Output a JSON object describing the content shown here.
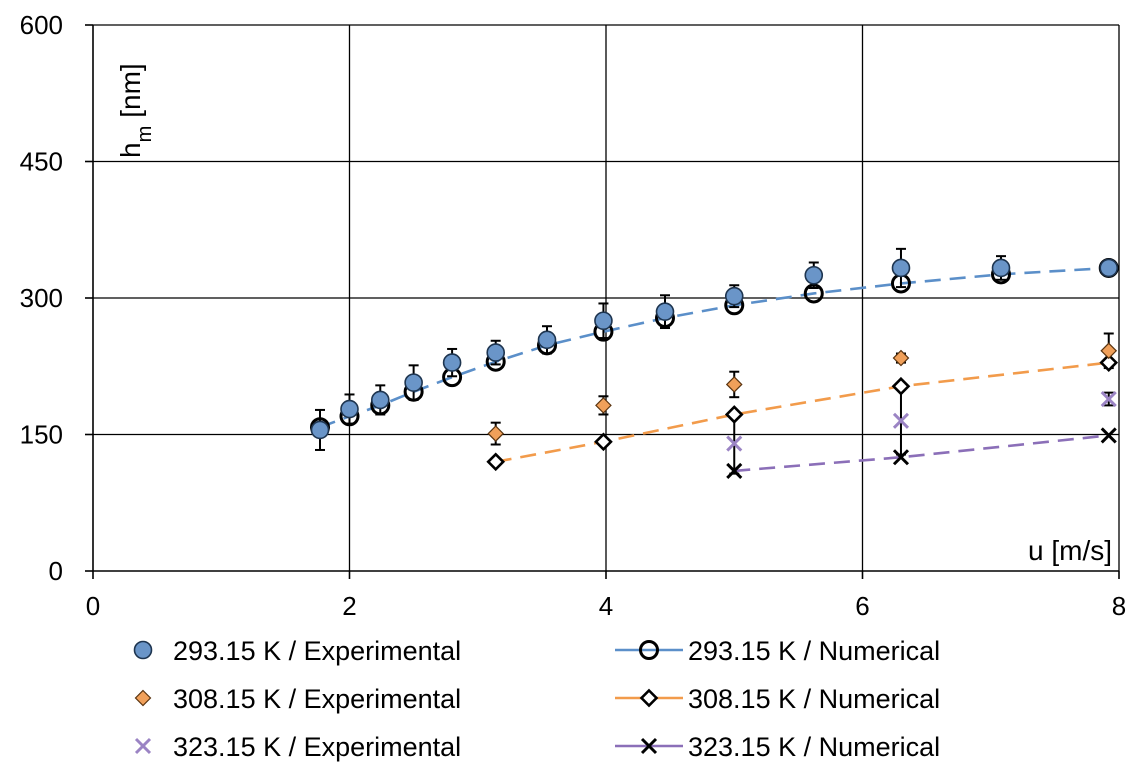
{
  "chart_data": {
    "type": "scatter",
    "xlabel": "u [m/s]",
    "ylabel_main": "h",
    "ylabel_sub": "m",
    "ylabel_unit": "[nm]",
    "xlim": [
      0,
      8
    ],
    "ylim": [
      0,
      600
    ],
    "x_ticks": [
      "0",
      "2",
      "4",
      "6",
      "8"
    ],
    "y_ticks": [
      "0",
      "150",
      "300",
      "450",
      "600"
    ],
    "grid": true,
    "legend_placement": "bottom",
    "series": [
      {
        "name": "293.15 K / Experimental",
        "kind": "experimental",
        "marker": "circle-filled",
        "color": "#6a95c8",
        "points": [
          {
            "x": 1.77,
            "y": 155,
            "err": 22
          },
          {
            "x": 2.0,
            "y": 178,
            "err": 16
          },
          {
            "x": 2.24,
            "y": 188,
            "err": 16
          },
          {
            "x": 2.5,
            "y": 207,
            "err": 19
          },
          {
            "x": 2.8,
            "y": 229,
            "err": 15
          },
          {
            "x": 3.14,
            "y": 240,
            "err": 13
          },
          {
            "x": 3.54,
            "y": 254,
            "err": 15
          },
          {
            "x": 3.98,
            "y": 275,
            "err": 19
          },
          {
            "x": 4.46,
            "y": 285,
            "err": 18
          },
          {
            "x": 5.0,
            "y": 302,
            "err": 12
          },
          {
            "x": 5.62,
            "y": 325,
            "err": 14
          },
          {
            "x": 6.3,
            "y": 333,
            "err": 21
          },
          {
            "x": 7.08,
            "y": 333,
            "err": 13
          },
          {
            "x": 7.92,
            "y": 333,
            "err": 8
          }
        ]
      },
      {
        "name": "293.15 K / Numerical",
        "kind": "numerical",
        "marker": "circle-open",
        "color": "#5b8fc9",
        "points": [
          {
            "x": 1.77,
            "y": 158
          },
          {
            "x": 2.0,
            "y": 170
          },
          {
            "x": 2.24,
            "y": 182
          },
          {
            "x": 2.5,
            "y": 197
          },
          {
            "x": 2.8,
            "y": 213
          },
          {
            "x": 3.14,
            "y": 230
          },
          {
            "x": 3.54,
            "y": 248
          },
          {
            "x": 3.98,
            "y": 263
          },
          {
            "x": 4.46,
            "y": 278
          },
          {
            "x": 5.0,
            "y": 292
          },
          {
            "x": 5.62,
            "y": 305
          },
          {
            "x": 6.3,
            "y": 316
          },
          {
            "x": 7.08,
            "y": 326
          },
          {
            "x": 7.92,
            "y": 333
          }
        ]
      },
      {
        "name": "308.15 K / Experimental",
        "kind": "experimental",
        "marker": "diamond-filled",
        "color": "#f0a05a",
        "points": [
          {
            "x": 3.14,
            "y": 151,
            "err": 12
          },
          {
            "x": 3.98,
            "y": 182,
            "err": 10
          },
          {
            "x": 5.0,
            "y": 205,
            "err": 14
          },
          {
            "x": 6.3,
            "y": 234,
            "err": 5
          },
          {
            "x": 7.92,
            "y": 242,
            "err": 19
          }
        ]
      },
      {
        "name": "308.15 K / Numerical",
        "kind": "numerical",
        "marker": "diamond-open",
        "color": "#f29b4b",
        "points": [
          {
            "x": 3.14,
            "y": 120
          },
          {
            "x": 3.98,
            "y": 142
          },
          {
            "x": 5.0,
            "y": 172
          },
          {
            "x": 6.3,
            "y": 203
          },
          {
            "x": 7.92,
            "y": 229
          }
        ]
      },
      {
        "name": "323.15 K / Experimental",
        "kind": "experimental",
        "marker": "x",
        "color": "#9b84c4",
        "points": [
          {
            "x": 5.0,
            "y": 140,
            "err": 33
          },
          {
            "x": 6.3,
            "y": 165,
            "err": 37
          },
          {
            "x": 7.92,
            "y": 189,
            "err": 7
          }
        ]
      },
      {
        "name": "323.15 K / Numerical",
        "kind": "numerical",
        "marker": "x",
        "color": "#8b6fb8",
        "points": [
          {
            "x": 5.0,
            "y": 110
          },
          {
            "x": 6.3,
            "y": 125
          },
          {
            "x": 7.92,
            "y": 149
          }
        ]
      }
    ]
  }
}
